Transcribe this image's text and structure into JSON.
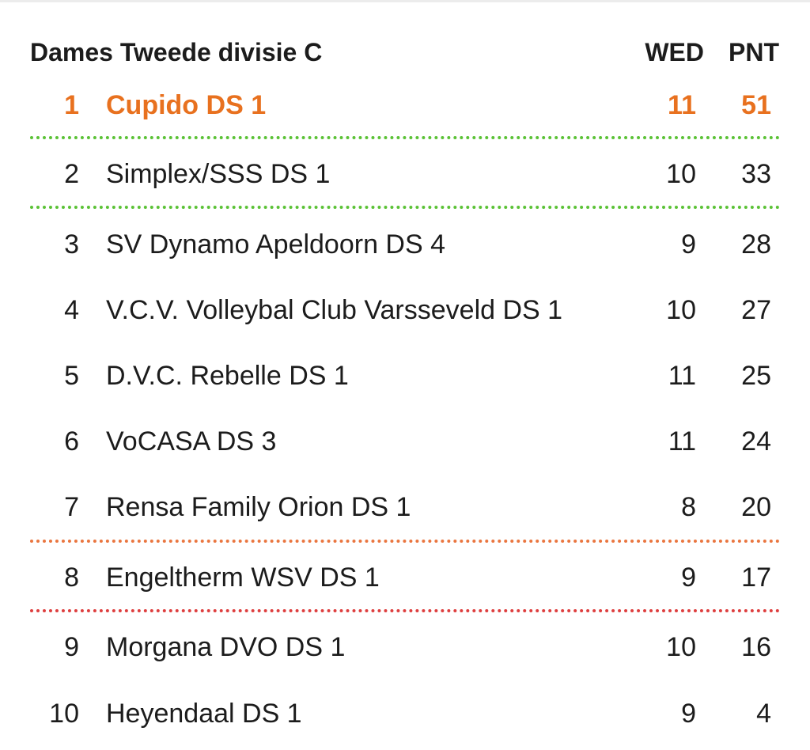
{
  "standings": {
    "title": "Dames Tweede divisie C",
    "col_matches": "WED",
    "col_points": "PNT",
    "rows": [
      {
        "pos": "1",
        "team": "Cupido DS 1",
        "wed": "11",
        "pnt": "51"
      },
      {
        "pos": "2",
        "team": "Simplex/SSS DS 1",
        "wed": "10",
        "pnt": "33"
      },
      {
        "pos": "3",
        "team": "SV Dynamo Apeldoorn DS 4",
        "wed": "9",
        "pnt": "28"
      },
      {
        "pos": "4",
        "team": "V.C.V. Volleybal Club Varsseveld DS 1",
        "wed": "10",
        "pnt": "27"
      },
      {
        "pos": "5",
        "team": "D.V.C. Rebelle DS 1",
        "wed": "11",
        "pnt": "25"
      },
      {
        "pos": "6",
        "team": "VoCASA DS 3",
        "wed": "11",
        "pnt": "24"
      },
      {
        "pos": "7",
        "team": "Rensa Family Orion DS 1",
        "wed": "8",
        "pnt": "20"
      },
      {
        "pos": "8",
        "team": "Engeltherm WSV DS 1",
        "wed": "9",
        "pnt": "17"
      },
      {
        "pos": "9",
        "team": "Morgana DVO DS 1",
        "wed": "10",
        "pnt": "16"
      },
      {
        "pos": "10",
        "team": "Heyendaal DS 1",
        "wed": "9",
        "pnt": "4"
      }
    ]
  },
  "colors": {
    "highlight": "#e8711f",
    "promotion_line": "#5bc236",
    "relegation_playoff_line": "#ea7640",
    "relegation_line": "#de3f3f"
  }
}
